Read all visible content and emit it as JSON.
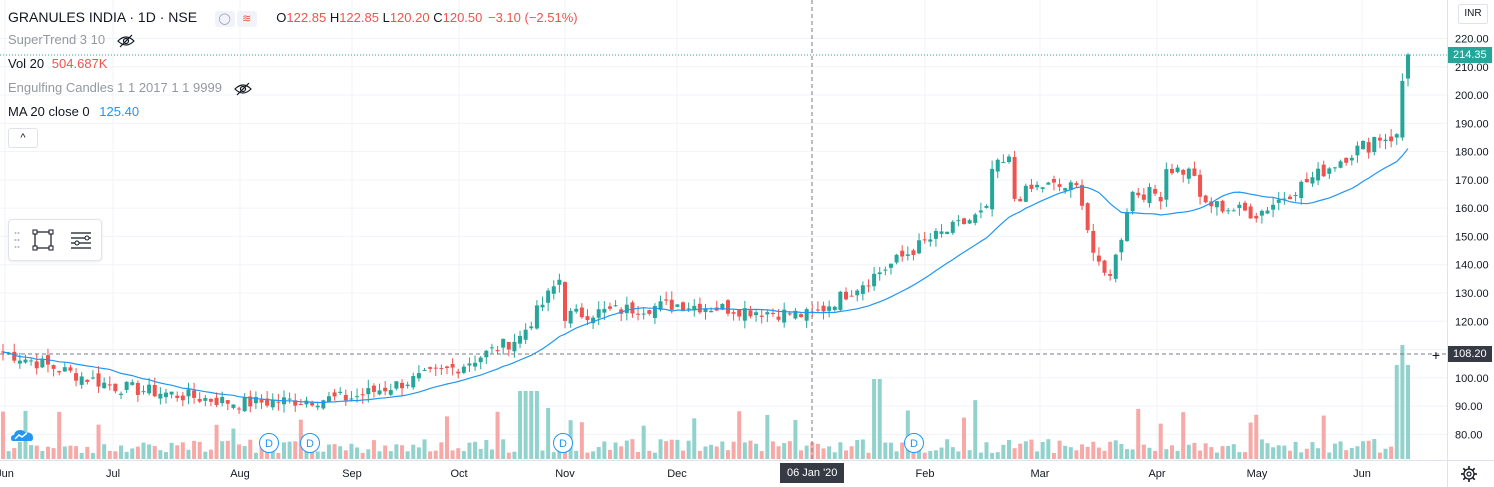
{
  "header": {
    "title": "GRANULES INDIA · 1D · NSE",
    "ohlc": [
      {
        "label": "O",
        "value": "122.85"
      },
      {
        "label": "H",
        "value": "122.85"
      },
      {
        "label": "L",
        "value": "120.20"
      },
      {
        "label": "C",
        "value": "120.50"
      }
    ],
    "change": "−3.10 (−2.51%)"
  },
  "indicators": {
    "supertrend": "SuperTrend 3 10",
    "volume_label": "Vol 20",
    "volume_value": "504.687K",
    "engulfing": "Engulfing Candles 1 1 2017 1 1 9999",
    "ma_label": "MA 20 close 0",
    "ma_value": "125.40"
  },
  "controls": {
    "collapse": "^",
    "currency": "INR"
  },
  "price_axis": {
    "ticks": [
      "220.00",
      "210.00",
      "200.00",
      "190.00",
      "180.00",
      "170.00",
      "160.00",
      "150.00",
      "140.00",
      "130.00",
      "120.00",
      "110.00",
      "100.00",
      "90.00",
      "80.00"
    ],
    "last_price_label": "214.35",
    "crosshair_price_label": "108.20"
  },
  "time_axis": {
    "ticks": [
      "Jun",
      "Jul",
      "Aug",
      "Sep",
      "Oct",
      "Nov",
      "Dec",
      "Feb",
      "Mar",
      "Apr",
      "May",
      "Jun"
    ],
    "crosshair_date_label": "06 Jan '20"
  },
  "dividend_markers": [
    "D",
    "D",
    "D",
    "D"
  ],
  "colors": {
    "up": "#26a69a",
    "down": "#ef5350",
    "volume_up": "#92d2cc",
    "volume_down": "#f7a9a7",
    "ma": "#2196f3",
    "grid": "#f0f3fa",
    "crosshair_label_bg": "#363a45",
    "last_price_bg": "#26a69a"
  },
  "chart_data": {
    "type": "candlestick",
    "symbol": "GRANULES INDIA",
    "interval": "1D",
    "exchange": "NSE",
    "ylim": [
      75,
      225
    ],
    "grid": true,
    "ticks_x": [
      "Jun",
      "Jul",
      "Aug",
      "Sep",
      "Oct",
      "Nov",
      "Dec",
      "Jan",
      "Feb",
      "Mar",
      "Apr",
      "May",
      "Jun"
    ],
    "close_anchors": [
      {
        "x": "Jun",
        "value": 109
      },
      {
        "x": "Jul",
        "value": 97
      },
      {
        "x": "Aug",
        "value": 91
      },
      {
        "x": "Sep",
        "value": 93
      },
      {
        "x": "Oct",
        "value": 104
      },
      {
        "x": "Nov",
        "value": 122
      },
      {
        "x": "Dec",
        "value": 126
      },
      {
        "x": "Jan",
        "value": 122
      },
      {
        "x": "Feb",
        "value": 148
      },
      {
        "x": "Mar",
        "value": 168
      },
      {
        "x": "Apr",
        "value": 165
      },
      {
        "x": "May",
        "value": 158
      },
      {
        "x": "Jun",
        "value": 182
      }
    ],
    "last_close": 214.35,
    "ma20_last": 176
  }
}
